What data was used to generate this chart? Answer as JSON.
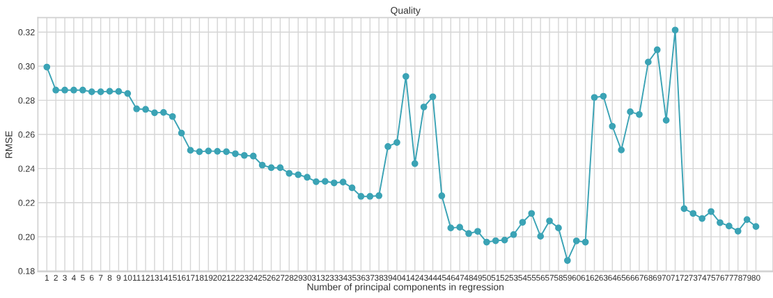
{
  "chart_data": {
    "type": "line",
    "title": "Quality",
    "xlabel": "Number of principal components in regression",
    "ylabel": "RMSE",
    "categories": [
      "1",
      "2",
      "3",
      "4",
      "5",
      "6",
      "7",
      "8",
      "9",
      "10",
      "11",
      "12",
      "13",
      "14",
      "15",
      "16",
      "17",
      "18",
      "19",
      "20",
      "21",
      "22",
      "23",
      "24",
      "25",
      "26",
      "27",
      "28",
      "29",
      "30",
      "31",
      "32",
      "33",
      "34",
      "35",
      "36",
      "37",
      "38",
      "39",
      "40",
      "41",
      "42",
      "43",
      "44",
      "45",
      "46",
      "47",
      "48",
      "49",
      "50",
      "51",
      "52",
      "53",
      "54",
      "55",
      "56",
      "57",
      "58",
      "59",
      "60",
      "61",
      "62",
      "63",
      "64",
      "65",
      "66",
      "67",
      "68",
      "69",
      "70",
      "71",
      "72",
      "73",
      "74",
      "75",
      "76",
      "77",
      "78",
      "79",
      "80"
    ],
    "series": [
      {
        "color": "#3ba3b5",
        "values": [
          0.2995,
          0.286,
          0.286,
          0.286,
          0.286,
          0.285,
          0.285,
          0.2853,
          0.2852,
          0.284,
          0.275,
          0.2747,
          0.2727,
          0.2729,
          0.2705,
          0.2608,
          0.2507,
          0.2499,
          0.2503,
          0.2501,
          0.2499,
          0.2487,
          0.2477,
          0.2473,
          0.242,
          0.2405,
          0.2405,
          0.2372,
          0.2364,
          0.2349,
          0.2323,
          0.2325,
          0.2316,
          0.2321,
          0.2287,
          0.2237,
          0.2237,
          0.2241,
          0.2529,
          0.2553,
          0.294,
          0.2429,
          0.2761,
          0.2821,
          0.224,
          0.2052,
          0.2056,
          0.2019,
          0.2032,
          0.1969,
          0.1977,
          0.1981,
          0.2013,
          0.2085,
          0.2137,
          0.2003,
          0.2093,
          0.2052,
          0.1861,
          0.1976,
          0.1969,
          0.2817,
          0.2824,
          0.2648,
          0.2509,
          0.2733,
          0.2717,
          0.3024,
          0.3096,
          0.2683,
          0.3212,
          0.2165,
          0.2137,
          0.2107,
          0.2148,
          0.2083,
          0.2063,
          0.2033,
          0.2101,
          0.206
        ]
      }
    ],
    "ylim": [
      0.1795,
      0.3285
    ],
    "yticks": [
      {
        "value": 0.18,
        "label": "0.18"
      },
      {
        "value": 0.2,
        "label": "0.20"
      },
      {
        "value": 0.22,
        "label": "0.22"
      },
      {
        "value": 0.24,
        "label": "0.24"
      },
      {
        "value": 0.26,
        "label": "0.26"
      },
      {
        "value": 0.28,
        "label": "0.28"
      },
      {
        "value": 0.3,
        "label": "0.30"
      },
      {
        "value": 0.32,
        "label": "0.32"
      }
    ],
    "grid": true,
    "marker": "circle",
    "line_style": "solid",
    "legend": false
  }
}
